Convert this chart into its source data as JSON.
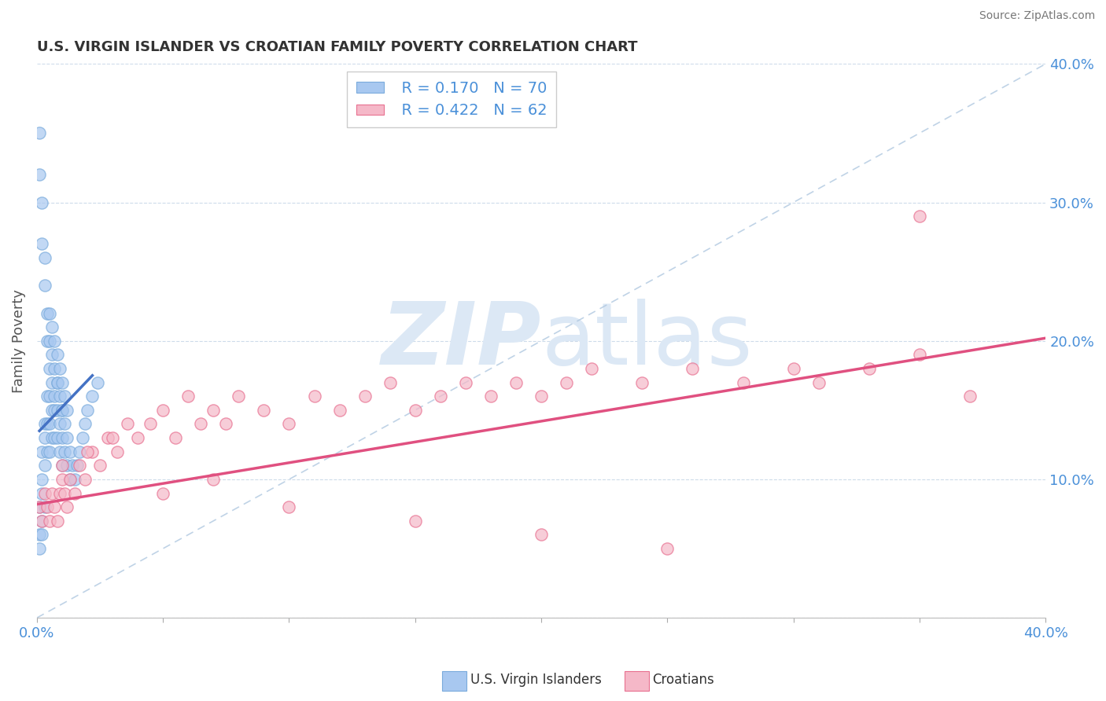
{
  "title": "U.S. VIRGIN ISLANDER VS CROATIAN FAMILY POVERTY CORRELATION CHART",
  "source": "Source: ZipAtlas.com",
  "ylabel": "Family Poverty",
  "xlim": [
    0.0,
    0.4
  ],
  "ylim": [
    0.0,
    0.4
  ],
  "legend_r1": "R = 0.170",
  "legend_n1": "N = 70",
  "legend_r2": "R = 0.422",
  "legend_n2": "N = 62",
  "color_vi": "#a8c8f0",
  "color_vi_edge": "#7aabdc",
  "color_cr": "#f5b8c8",
  "color_cr_edge": "#e87090",
  "color_vi_line": "#4472c4",
  "color_cr_line": "#e05080",
  "color_diag": "#b0c8e0",
  "watermark_color": "#dce8f5",
  "vi_x": [
    0.001,
    0.001,
    0.001,
    0.002,
    0.002,
    0.002,
    0.002,
    0.002,
    0.003,
    0.003,
    0.003,
    0.003,
    0.004,
    0.004,
    0.004,
    0.005,
    0.005,
    0.005,
    0.005,
    0.006,
    0.006,
    0.006,
    0.007,
    0.007,
    0.007,
    0.008,
    0.008,
    0.008,
    0.009,
    0.009,
    0.009,
    0.01,
    0.01,
    0.01,
    0.011,
    0.011,
    0.012,
    0.012,
    0.013,
    0.013,
    0.014,
    0.015,
    0.016,
    0.017,
    0.018,
    0.019,
    0.02,
    0.022,
    0.024,
    0.001,
    0.001,
    0.002,
    0.002,
    0.003,
    0.003,
    0.004,
    0.004,
    0.005,
    0.005,
    0.006,
    0.006,
    0.007,
    0.007,
    0.008,
    0.008,
    0.009,
    0.01,
    0.01,
    0.011,
    0.012
  ],
  "vi_y": [
    0.08,
    0.06,
    0.05,
    0.12,
    0.1,
    0.09,
    0.07,
    0.06,
    0.14,
    0.13,
    0.11,
    0.08,
    0.16,
    0.14,
    0.12,
    0.18,
    0.16,
    0.14,
    0.12,
    0.17,
    0.15,
    0.13,
    0.16,
    0.15,
    0.13,
    0.17,
    0.15,
    0.13,
    0.16,
    0.14,
    0.12,
    0.15,
    0.13,
    0.11,
    0.14,
    0.12,
    0.13,
    0.11,
    0.12,
    0.1,
    0.11,
    0.1,
    0.11,
    0.12,
    0.13,
    0.14,
    0.15,
    0.16,
    0.17,
    0.35,
    0.32,
    0.3,
    0.27,
    0.26,
    0.24,
    0.22,
    0.2,
    0.22,
    0.2,
    0.21,
    0.19,
    0.2,
    0.18,
    0.19,
    0.17,
    0.18,
    0.17,
    0.15,
    0.16,
    0.15
  ],
  "cr_x": [
    0.001,
    0.002,
    0.003,
    0.004,
    0.005,
    0.006,
    0.007,
    0.008,
    0.009,
    0.01,
    0.011,
    0.012,
    0.013,
    0.015,
    0.017,
    0.019,
    0.022,
    0.025,
    0.028,
    0.032,
    0.036,
    0.04,
    0.045,
    0.05,
    0.055,
    0.06,
    0.065,
    0.07,
    0.075,
    0.08,
    0.09,
    0.1,
    0.11,
    0.12,
    0.13,
    0.14,
    0.15,
    0.16,
    0.17,
    0.18,
    0.19,
    0.2,
    0.21,
    0.22,
    0.24,
    0.26,
    0.28,
    0.3,
    0.31,
    0.33,
    0.35,
    0.37,
    0.01,
    0.02,
    0.03,
    0.05,
    0.07,
    0.1,
    0.15,
    0.2,
    0.25,
    0.35
  ],
  "cr_y": [
    0.08,
    0.07,
    0.09,
    0.08,
    0.07,
    0.09,
    0.08,
    0.07,
    0.09,
    0.1,
    0.09,
    0.08,
    0.1,
    0.09,
    0.11,
    0.1,
    0.12,
    0.11,
    0.13,
    0.12,
    0.14,
    0.13,
    0.14,
    0.15,
    0.13,
    0.16,
    0.14,
    0.15,
    0.14,
    0.16,
    0.15,
    0.14,
    0.16,
    0.15,
    0.16,
    0.17,
    0.15,
    0.16,
    0.17,
    0.16,
    0.17,
    0.16,
    0.17,
    0.18,
    0.17,
    0.18,
    0.17,
    0.18,
    0.17,
    0.18,
    0.19,
    0.16,
    0.11,
    0.12,
    0.13,
    0.09,
    0.1,
    0.08,
    0.07,
    0.06,
    0.05,
    0.29
  ],
  "vi_trend_x": [
    0.001,
    0.022
  ],
  "vi_trend_y": [
    0.135,
    0.175
  ],
  "cr_trend_x": [
    0.0,
    0.4
  ],
  "cr_trend_y": [
    0.082,
    0.202
  ]
}
